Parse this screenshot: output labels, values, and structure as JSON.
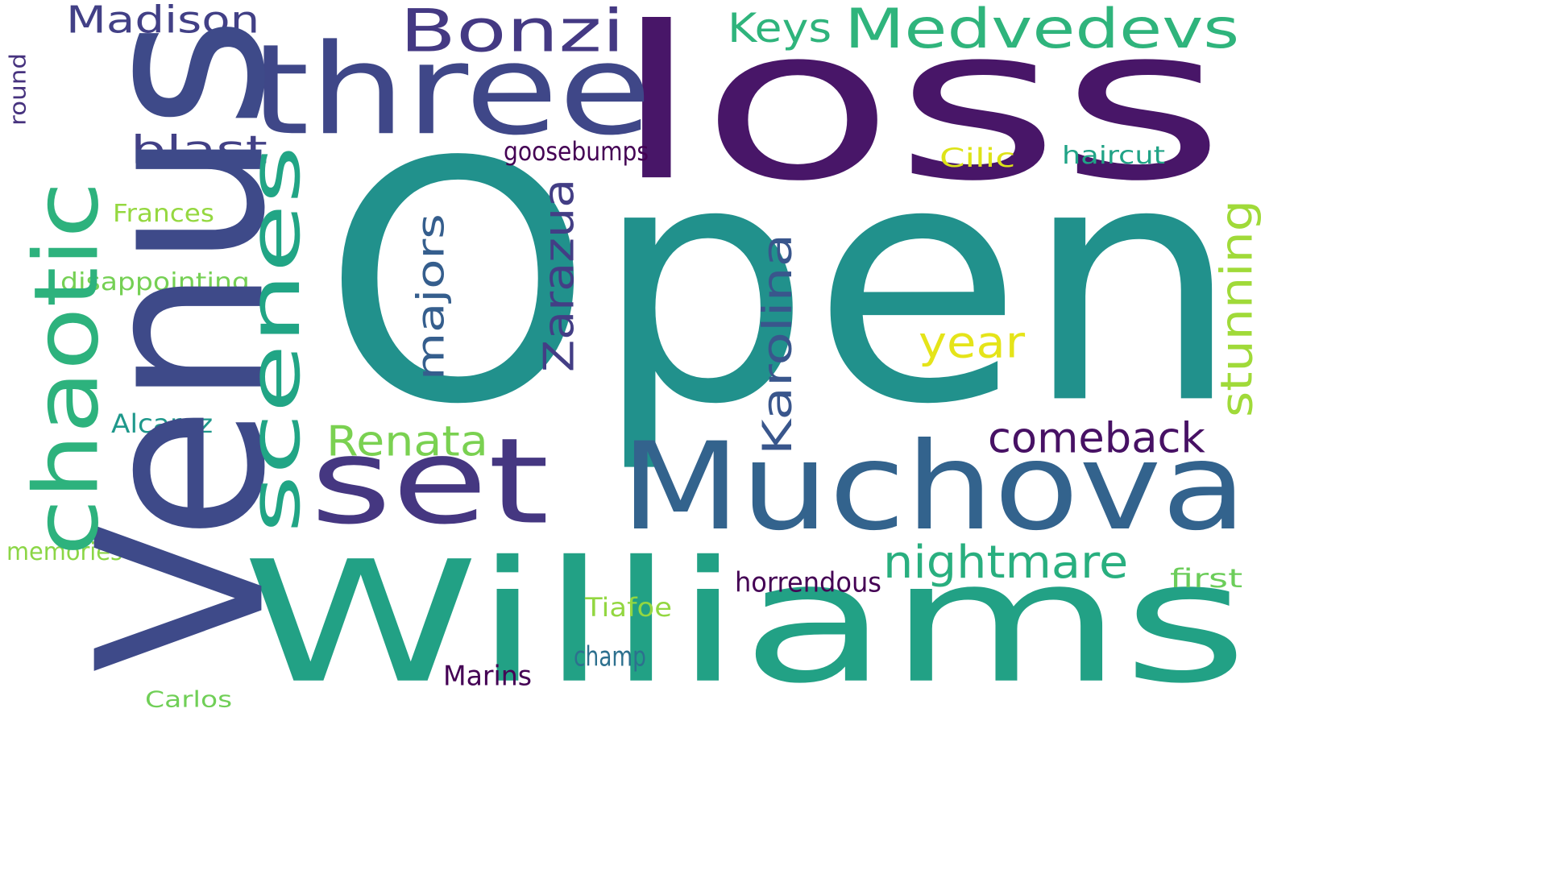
{
  "words": {
    "open": {
      "text": "Open",
      "color": "#21918c"
    },
    "venus": {
      "text": "Venus",
      "color": "#3e4a89"
    },
    "loss": {
      "text": "loss",
      "color": "#481668"
    },
    "williams": {
      "text": "Williams",
      "color": "#22a185"
    },
    "muchova": {
      "text": "Muchova",
      "color": "#33638d"
    },
    "three": {
      "text": "three",
      "color": "#3f4788"
    },
    "set": {
      "text": "set",
      "color": "#453781"
    },
    "medvedevs": {
      "text": "Medvedevs",
      "color": "#2fb47c"
    },
    "bonzi": {
      "text": "Bonzi",
      "color": "#443983"
    },
    "scenes": {
      "text": "scenes",
      "color": "#21a585"
    },
    "chaotic": {
      "text": "chaotic",
      "color": "#2db27d"
    },
    "madison": {
      "text": "Madison",
      "color": "#424086"
    },
    "keys": {
      "text": "Keys",
      "color": "#2fb47c"
    },
    "blast": {
      "text": "blast",
      "color": "#424086"
    },
    "goosebumps": {
      "text": "goosebumps",
      "color": "#440154"
    },
    "cilic": {
      "text": "Cilic",
      "color": "#dde318"
    },
    "haircut": {
      "text": "haircut",
      "color": "#20a386"
    },
    "zarazua": {
      "text": "Zarazua",
      "color": "#433e85"
    },
    "majors": {
      "text": "majors",
      "color": "#355e8d"
    },
    "karolina": {
      "text": "Karolina",
      "color": "#39568c"
    },
    "stunning": {
      "text": "stunning",
      "color": "#a0da39"
    },
    "year": {
      "text": "year",
      "color": "#e5e419"
    },
    "frances": {
      "text": "Frances",
      "color": "#95d840"
    },
    "disappointing": {
      "text": "disappointing",
      "color": "#75d054"
    },
    "round": {
      "text": "round",
      "color": "#46327e"
    },
    "renata": {
      "text": "Renata",
      "color": "#7ad151"
    },
    "comeback": {
      "text": "comeback",
      "color": "#471164"
    },
    "alcaraz": {
      "text": "Alcaraz",
      "color": "#1f988b"
    },
    "nightmare": {
      "text": "nightmare",
      "color": "#29af7f"
    },
    "memories": {
      "text": "memories",
      "color": "#8bd646"
    },
    "horrendous": {
      "text": "horrendous",
      "color": "#440154"
    },
    "first": {
      "text": "first",
      "color": "#6ccd5a"
    },
    "tiafoe": {
      "text": "Tiafoe",
      "color": "#93d741"
    },
    "champ": {
      "text": "champ",
      "color": "#2d708e"
    },
    "marins": {
      "text": "Marins",
      "color": "#440154"
    },
    "carlos": {
      "text": "Carlos",
      "color": "#70cf57"
    }
  }
}
